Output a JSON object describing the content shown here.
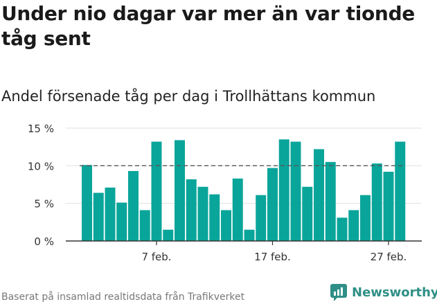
{
  "title": "Under nio dagar var mer än var tionde tåg sent",
  "subtitle": "Andel försenade tåg per dag i Trollhättans kommun",
  "source": "Baserat på insamlad realtidsdata från Trafikverket",
  "brand": {
    "name": "Newsworthy",
    "logo_icon": "newsworthy-logo-icon"
  },
  "colors": {
    "bar": "#0aa59a",
    "reference": "#555555",
    "grid": "#e0e0e0",
    "axis": "#333333"
  },
  "chart_data": {
    "type": "bar",
    "title": "Andel försenade tåg per dag i Trollhättans kommun",
    "x": [
      "1 feb.",
      "2 feb.",
      "3 feb.",
      "4 feb.",
      "5 feb.",
      "6 feb.",
      "7 feb.",
      "8 feb.",
      "9 feb.",
      "10 feb.",
      "11 feb.",
      "12 feb.",
      "13 feb.",
      "14 feb.",
      "15 feb.",
      "16 feb.",
      "17 feb.",
      "18 feb.",
      "19 feb.",
      "20 feb.",
      "21 feb.",
      "22 feb.",
      "23 feb.",
      "24 feb.",
      "25 feb.",
      "26 feb.",
      "27 feb.",
      "28 feb."
    ],
    "values": [
      10.1,
      6.4,
      7.1,
      5.1,
      9.3,
      4.1,
      13.2,
      1.5,
      13.4,
      8.2,
      7.2,
      6.2,
      4.1,
      8.3,
      1.5,
      6.1,
      9.7,
      13.5,
      13.2,
      7.2,
      12.2,
      10.5,
      3.1,
      4.1,
      6.1,
      10.3,
      9.2,
      13.2
    ],
    "ylim": [
      0,
      15
    ],
    "yticks": [
      0,
      5,
      10,
      15
    ],
    "ytick_labels": [
      "0 %",
      "5 %",
      "10 %",
      "15 %"
    ],
    "xticks": [
      {
        "index": 6,
        "label": "7 feb."
      },
      {
        "index": 16,
        "label": "17 feb."
      },
      {
        "index": 26,
        "label": "27 feb."
      }
    ],
    "reference_line": {
      "value": 10,
      "style": "dashed"
    },
    "grid": true,
    "xlabel": "",
    "ylabel": ""
  }
}
